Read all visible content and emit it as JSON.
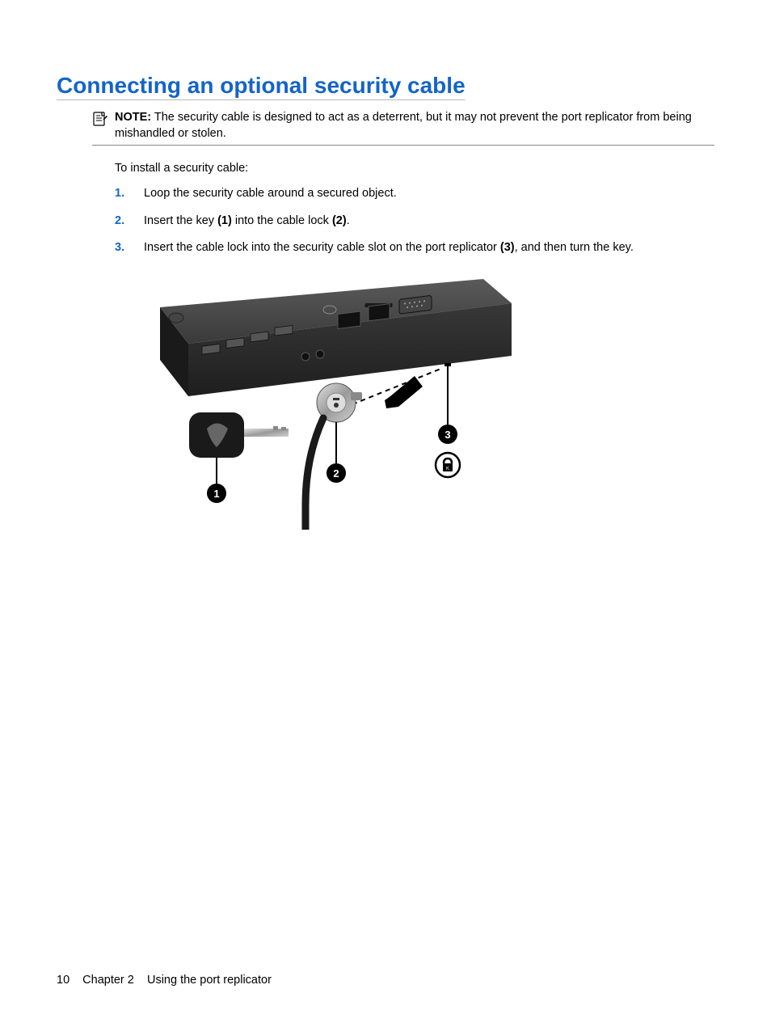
{
  "heading": {
    "text": "Connecting an optional security cable",
    "color": "#1464c8",
    "fontsize": 28
  },
  "note": {
    "label": "NOTE:",
    "text": "The security cable is designed to act as a deterrent, but it may not prevent the port replicator from being mishandled or stolen.",
    "icon_name": "note-icon"
  },
  "intro": "To install a security cable:",
  "steps": [
    {
      "num": "1.",
      "segments": [
        {
          "text": "Loop the security cable around a secured object.",
          "bold": false
        }
      ]
    },
    {
      "num": "2.",
      "segments": [
        {
          "text": "Insert the key ",
          "bold": false
        },
        {
          "text": "(1)",
          "bold": true
        },
        {
          "text": " into the cable lock ",
          "bold": false
        },
        {
          "text": "(2)",
          "bold": true
        },
        {
          "text": ".",
          "bold": false
        }
      ]
    },
    {
      "num": "3.",
      "segments": [
        {
          "text": "Insert the cable lock into the security cable slot on the port replicator ",
          "bold": false
        },
        {
          "text": "(3)",
          "bold": true
        },
        {
          "text": ", and then turn the key.",
          "bold": false
        }
      ]
    }
  ],
  "illustration": {
    "callouts": [
      "1",
      "2",
      "3"
    ],
    "colors": {
      "device_dark": "#2a2a2a",
      "device_light": "#6a6a6a",
      "metal": "#b8b8b8",
      "key_dark": "#1a1a1a",
      "callout_bg": "#000000",
      "callout_fg": "#ffffff",
      "lock_icon_stroke": "#000000"
    }
  },
  "footer": {
    "page_number": "10",
    "chapter_label": "Chapter 2",
    "chapter_title": "Using the port replicator"
  },
  "colors": {
    "accent": "#1464c8",
    "body_text": "#000000",
    "rule": "#888888",
    "background": "#ffffff"
  }
}
